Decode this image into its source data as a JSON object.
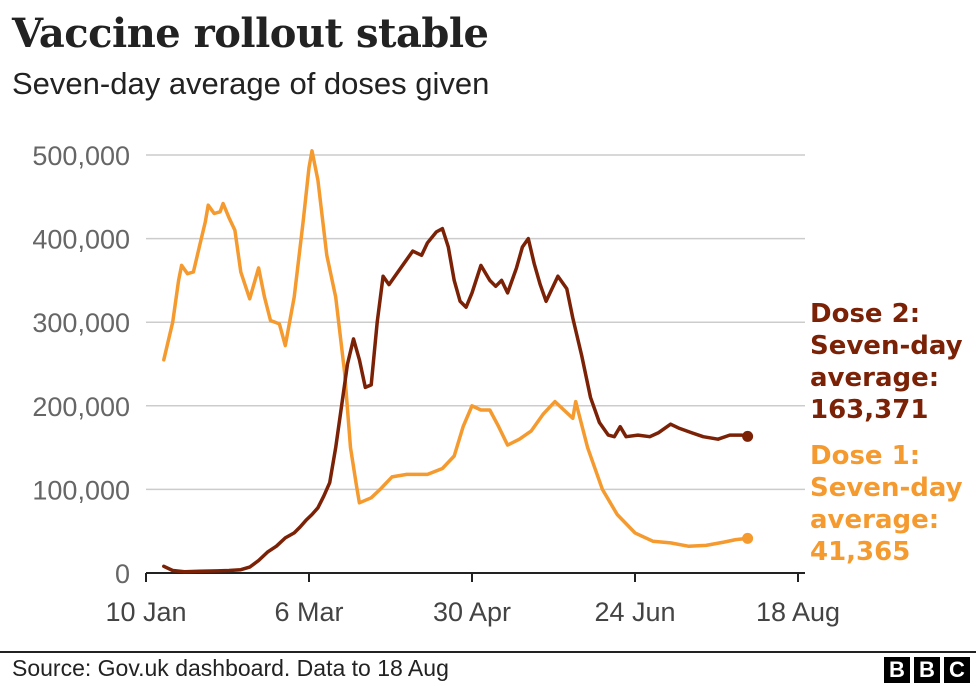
{
  "header": {
    "title": "Vaccine rollout stable",
    "subtitle": "Seven-day average of doses given"
  },
  "footer": {
    "source": "Source: Gov.uk dashboard. Data to 18 Aug",
    "logo_letters": [
      "B",
      "B",
      "C"
    ]
  },
  "colors": {
    "dose1": "#f59a2e",
    "dose2": "#7b2106",
    "grid": "#cccccc",
    "axis": "#222222"
  },
  "annotations": {
    "dose2": [
      "Dose 2:",
      "Seven-day",
      "average:",
      "163,371"
    ],
    "dose1": [
      "Dose 1:",
      "Seven-day",
      "average:",
      "41,365"
    ]
  },
  "chart_data": {
    "type": "line",
    "x_start": "2021-01-10",
    "x_end": "2021-08-18",
    "x_ticks": [
      {
        "date": "2021-01-10",
        "label": "10 Jan"
      },
      {
        "date": "2021-03-06",
        "label": "6 Mar"
      },
      {
        "date": "2021-04-30",
        "label": "30 Apr"
      },
      {
        "date": "2021-06-24",
        "label": "24 Jun"
      },
      {
        "date": "2021-08-18",
        "label": "18 Aug"
      }
    ],
    "y_ticks": [
      {
        "value": 0,
        "label": "0"
      },
      {
        "value": 100000,
        "label": "100,000"
      },
      {
        "value": 200000,
        "label": "200,000"
      },
      {
        "value": 300000,
        "label": "300,000"
      },
      {
        "value": 400000,
        "label": "400,000"
      },
      {
        "value": 500000,
        "label": "500,000"
      }
    ],
    "ylim": [
      0,
      500000
    ],
    "grid": true,
    "series": [
      {
        "name": "Dose 1",
        "points": [
          [
            "2021-01-16",
            255000
          ],
          [
            "2021-01-19",
            300000
          ],
          [
            "2021-01-21",
            350000
          ],
          [
            "2021-01-22",
            368000
          ],
          [
            "2021-01-24",
            358000
          ],
          [
            "2021-01-26",
            360000
          ],
          [
            "2021-01-28",
            390000
          ],
          [
            "2021-01-30",
            420000
          ],
          [
            "2021-01-31",
            440000
          ],
          [
            "2021-02-02",
            430000
          ],
          [
            "2021-02-04",
            432000
          ],
          [
            "2021-02-05",
            442000
          ],
          [
            "2021-02-07",
            425000
          ],
          [
            "2021-02-09",
            410000
          ],
          [
            "2021-02-11",
            360000
          ],
          [
            "2021-02-14",
            328000
          ],
          [
            "2021-02-17",
            365000
          ],
          [
            "2021-02-19",
            330000
          ],
          [
            "2021-02-21",
            302000
          ],
          [
            "2021-02-24",
            298000
          ],
          [
            "2021-02-26",
            272000
          ],
          [
            "2021-03-01",
            330000
          ],
          [
            "2021-03-04",
            420000
          ],
          [
            "2021-03-06",
            485000
          ],
          [
            "2021-03-07",
            505000
          ],
          [
            "2021-03-09",
            470000
          ],
          [
            "2021-03-12",
            380000
          ],
          [
            "2021-03-15",
            330000
          ],
          [
            "2021-03-18",
            240000
          ],
          [
            "2021-03-20",
            150000
          ],
          [
            "2021-03-22",
            105000
          ],
          [
            "2021-03-23",
            84000
          ],
          [
            "2021-03-27",
            90000
          ],
          [
            "2021-03-30",
            100000
          ],
          [
            "2021-04-03",
            115000
          ],
          [
            "2021-04-08",
            118000
          ],
          [
            "2021-04-15",
            118000
          ],
          [
            "2021-04-20",
            125000
          ],
          [
            "2021-04-24",
            140000
          ],
          [
            "2021-04-27",
            175000
          ],
          [
            "2021-04-30",
            200000
          ],
          [
            "2021-05-03",
            195000
          ],
          [
            "2021-05-06",
            195000
          ],
          [
            "2021-05-09",
            175000
          ],
          [
            "2021-05-12",
            153000
          ],
          [
            "2021-05-16",
            160000
          ],
          [
            "2021-05-20",
            170000
          ],
          [
            "2021-05-24",
            190000
          ],
          [
            "2021-05-28",
            205000
          ],
          [
            "2021-05-31",
            195000
          ],
          [
            "2021-06-03",
            185000
          ],
          [
            "2021-06-04",
            205000
          ],
          [
            "2021-06-08",
            150000
          ],
          [
            "2021-06-13",
            100000
          ],
          [
            "2021-06-18",
            70000
          ],
          [
            "2021-06-24",
            48000
          ],
          [
            "2021-06-30",
            38000
          ],
          [
            "2021-07-06",
            36000
          ],
          [
            "2021-07-12",
            32000
          ],
          [
            "2021-07-18",
            33000
          ],
          [
            "2021-07-24",
            37000
          ],
          [
            "2021-07-28",
            40000
          ],
          [
            "2021-08-01",
            41365
          ]
        ]
      },
      {
        "name": "Dose 2",
        "points": [
          [
            "2021-01-16",
            8000
          ],
          [
            "2021-01-19",
            3000
          ],
          [
            "2021-01-23",
            1500
          ],
          [
            "2021-01-28",
            2000
          ],
          [
            "2021-02-03",
            2500
          ],
          [
            "2021-02-07",
            3000
          ],
          [
            "2021-02-11",
            4000
          ],
          [
            "2021-02-14",
            7000
          ],
          [
            "2021-02-17",
            15000
          ],
          [
            "2021-02-20",
            25000
          ],
          [
            "2021-02-23",
            32000
          ],
          [
            "2021-02-26",
            42000
          ],
          [
            "2021-03-01",
            48000
          ],
          [
            "2021-03-03",
            55000
          ],
          [
            "2021-03-05",
            63000
          ],
          [
            "2021-03-07",
            70000
          ],
          [
            "2021-03-09",
            78000
          ],
          [
            "2021-03-11",
            92000
          ],
          [
            "2021-03-13",
            108000
          ],
          [
            "2021-03-15",
            150000
          ],
          [
            "2021-03-17",
            200000
          ],
          [
            "2021-03-19",
            250000
          ],
          [
            "2021-03-21",
            280000
          ],
          [
            "2021-03-23",
            255000
          ],
          [
            "2021-03-25",
            222000
          ],
          [
            "2021-03-27",
            225000
          ],
          [
            "2021-03-29",
            300000
          ],
          [
            "2021-03-31",
            355000
          ],
          [
            "2021-04-02",
            345000
          ],
          [
            "2021-04-04",
            355000
          ],
          [
            "2021-04-07",
            370000
          ],
          [
            "2021-04-10",
            385000
          ],
          [
            "2021-04-13",
            380000
          ],
          [
            "2021-04-15",
            395000
          ],
          [
            "2021-04-18",
            408000
          ],
          [
            "2021-04-20",
            412000
          ],
          [
            "2021-04-22",
            390000
          ],
          [
            "2021-04-24",
            350000
          ],
          [
            "2021-04-26",
            325000
          ],
          [
            "2021-04-28",
            318000
          ],
          [
            "2021-04-30",
            335000
          ],
          [
            "2021-05-03",
            368000
          ],
          [
            "2021-05-06",
            350000
          ],
          [
            "2021-05-08",
            343000
          ],
          [
            "2021-05-10",
            350000
          ],
          [
            "2021-05-12",
            335000
          ],
          [
            "2021-05-15",
            365000
          ],
          [
            "2021-05-17",
            390000
          ],
          [
            "2021-05-19",
            400000
          ],
          [
            "2021-05-21",
            370000
          ],
          [
            "2021-05-23",
            345000
          ],
          [
            "2021-05-25",
            325000
          ],
          [
            "2021-05-27",
            340000
          ],
          [
            "2021-05-29",
            355000
          ],
          [
            "2021-06-01",
            340000
          ],
          [
            "2021-06-03",
            305000
          ],
          [
            "2021-06-06",
            260000
          ],
          [
            "2021-06-09",
            210000
          ],
          [
            "2021-06-12",
            180000
          ],
          [
            "2021-06-15",
            165000
          ],
          [
            "2021-06-17",
            163000
          ],
          [
            "2021-06-19",
            175000
          ],
          [
            "2021-06-21",
            163000
          ],
          [
            "2021-06-25",
            165000
          ],
          [
            "2021-06-29",
            163000
          ],
          [
            "2021-07-02",
            168000
          ],
          [
            "2021-07-06",
            178000
          ],
          [
            "2021-07-09",
            173000
          ],
          [
            "2021-07-13",
            168000
          ],
          [
            "2021-07-17",
            163000
          ],
          [
            "2021-07-22",
            160000
          ],
          [
            "2021-07-26",
            165000
          ],
          [
            "2021-07-30",
            165000
          ],
          [
            "2021-08-01",
            163371
          ]
        ]
      }
    ]
  }
}
